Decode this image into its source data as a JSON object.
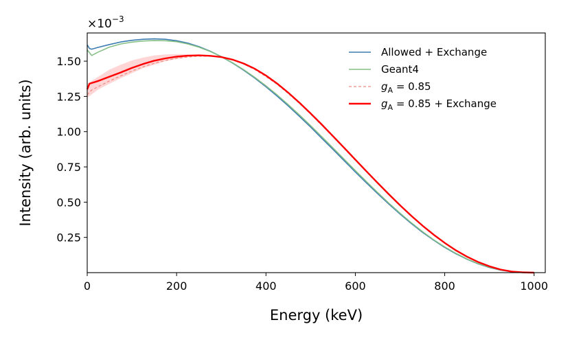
{
  "chart_data": {
    "type": "line",
    "title": "",
    "xlabel": "Energy (keV)",
    "ylabel": "Intensity (arb. units)",
    "y_offset_label": "×10",
    "y_offset_exponent": "−3",
    "xlim": [
      0,
      1025
    ],
    "ylim": [
      0,
      1.7
    ],
    "y_scale_note": "values shown in units of 1e-3",
    "xticks": [
      0,
      200,
      400,
      600,
      800,
      1000
    ],
    "xtick_labels": [
      "0",
      "200",
      "400",
      "600",
      "800",
      "1000"
    ],
    "yticks": [
      0.25,
      0.5,
      0.75,
      1.0,
      1.25,
      1.5
    ],
    "ytick_labels": [
      "0.25",
      "0.50",
      "0.75",
      "1.00",
      "1.25",
      "1.50"
    ],
    "grid": false,
    "legend_position": "top-right",
    "x": [
      0,
      5,
      10,
      25,
      50,
      75,
      100,
      125,
      150,
      175,
      200,
      225,
      250,
      275,
      300,
      325,
      350,
      375,
      400,
      425,
      450,
      475,
      500,
      525,
      550,
      575,
      600,
      625,
      650,
      675,
      700,
      725,
      750,
      775,
      800,
      825,
      850,
      875,
      900,
      925,
      950,
      975,
      1000
    ],
    "series": [
      {
        "name": "Allowed + Exchange",
        "color": "#3a7bb0",
        "style": "solid",
        "values": [
          1.615,
          1.59,
          1.585,
          1.598,
          1.618,
          1.636,
          1.648,
          1.655,
          1.658,
          1.655,
          1.645,
          1.628,
          1.603,
          1.571,
          1.532,
          1.487,
          1.436,
          1.38,
          1.318,
          1.252,
          1.182,
          1.108,
          1.032,
          0.953,
          0.874,
          0.794,
          0.714,
          0.636,
          0.56,
          0.486,
          0.416,
          0.349,
          0.287,
          0.231,
          0.179,
          0.134,
          0.095,
          0.062,
          0.036,
          0.018,
          0.006,
          0.001,
          0.0
        ]
      },
      {
        "name": "Geant4",
        "color": "#86bf86",
        "style": "solid",
        "values": [
          1.58,
          1.56,
          1.54,
          1.565,
          1.6,
          1.622,
          1.635,
          1.643,
          1.646,
          1.645,
          1.638,
          1.622,
          1.599,
          1.569,
          1.532,
          1.489,
          1.44,
          1.385,
          1.325,
          1.26,
          1.191,
          1.118,
          1.042,
          0.964,
          0.884,
          0.804,
          0.724,
          0.645,
          0.568,
          0.493,
          0.422,
          0.354,
          0.292,
          0.234,
          0.182,
          0.137,
          0.097,
          0.064,
          0.038,
          0.019,
          0.007,
          0.001,
          0.0
        ]
      },
      {
        "name": "g_A = 0.85",
        "label_math": "g",
        "label_sub": "A",
        "label_rest": " = 0.85",
        "color": "#f08a82",
        "style": "dashed",
        "values": [
          1.26,
          1.28,
          1.295,
          1.32,
          1.36,
          1.395,
          1.43,
          1.46,
          1.485,
          1.505,
          1.52,
          1.53,
          1.535,
          1.535,
          1.528,
          1.51,
          1.48,
          1.44,
          1.39,
          1.335,
          1.27,
          1.2,
          1.124,
          1.045,
          0.963,
          0.88,
          0.797,
          0.714,
          0.632,
          0.552,
          0.475,
          0.401,
          0.332,
          0.268,
          0.209,
          0.157,
          0.112,
          0.074,
          0.044,
          0.022,
          0.008,
          0.002,
          0.0
        ]
      },
      {
        "name": "g_A = 0.85 + Exchange",
        "label_math": "g",
        "label_sub": "A",
        "label_rest": " = 0.85 + Exchange",
        "color": "#ff0000",
        "style": "solid",
        "values": [
          1.3,
          1.34,
          1.345,
          1.36,
          1.39,
          1.42,
          1.452,
          1.48,
          1.503,
          1.52,
          1.532,
          1.539,
          1.541,
          1.538,
          1.529,
          1.511,
          1.483,
          1.446,
          1.398,
          1.341,
          1.276,
          1.205,
          1.129,
          1.05,
          0.968,
          0.885,
          0.802,
          0.718,
          0.636,
          0.556,
          0.478,
          0.404,
          0.334,
          0.27,
          0.211,
          0.158,
          0.113,
          0.075,
          0.045,
          0.022,
          0.008,
          0.002,
          0.0
        ]
      }
    ],
    "band": {
      "color": "#ffb3b3",
      "x": [
        0,
        25,
        50,
        75,
        100,
        125,
        150,
        175,
        200,
        225,
        250
      ],
      "upper": [
        1.34,
        1.39,
        1.44,
        1.475,
        1.505,
        1.525,
        1.54,
        1.548,
        1.55,
        1.548,
        1.545
      ],
      "lower": [
        1.24,
        1.3,
        1.34,
        1.38,
        1.415,
        1.45,
        1.475,
        1.5,
        1.515,
        1.528,
        1.535
      ]
    }
  }
}
